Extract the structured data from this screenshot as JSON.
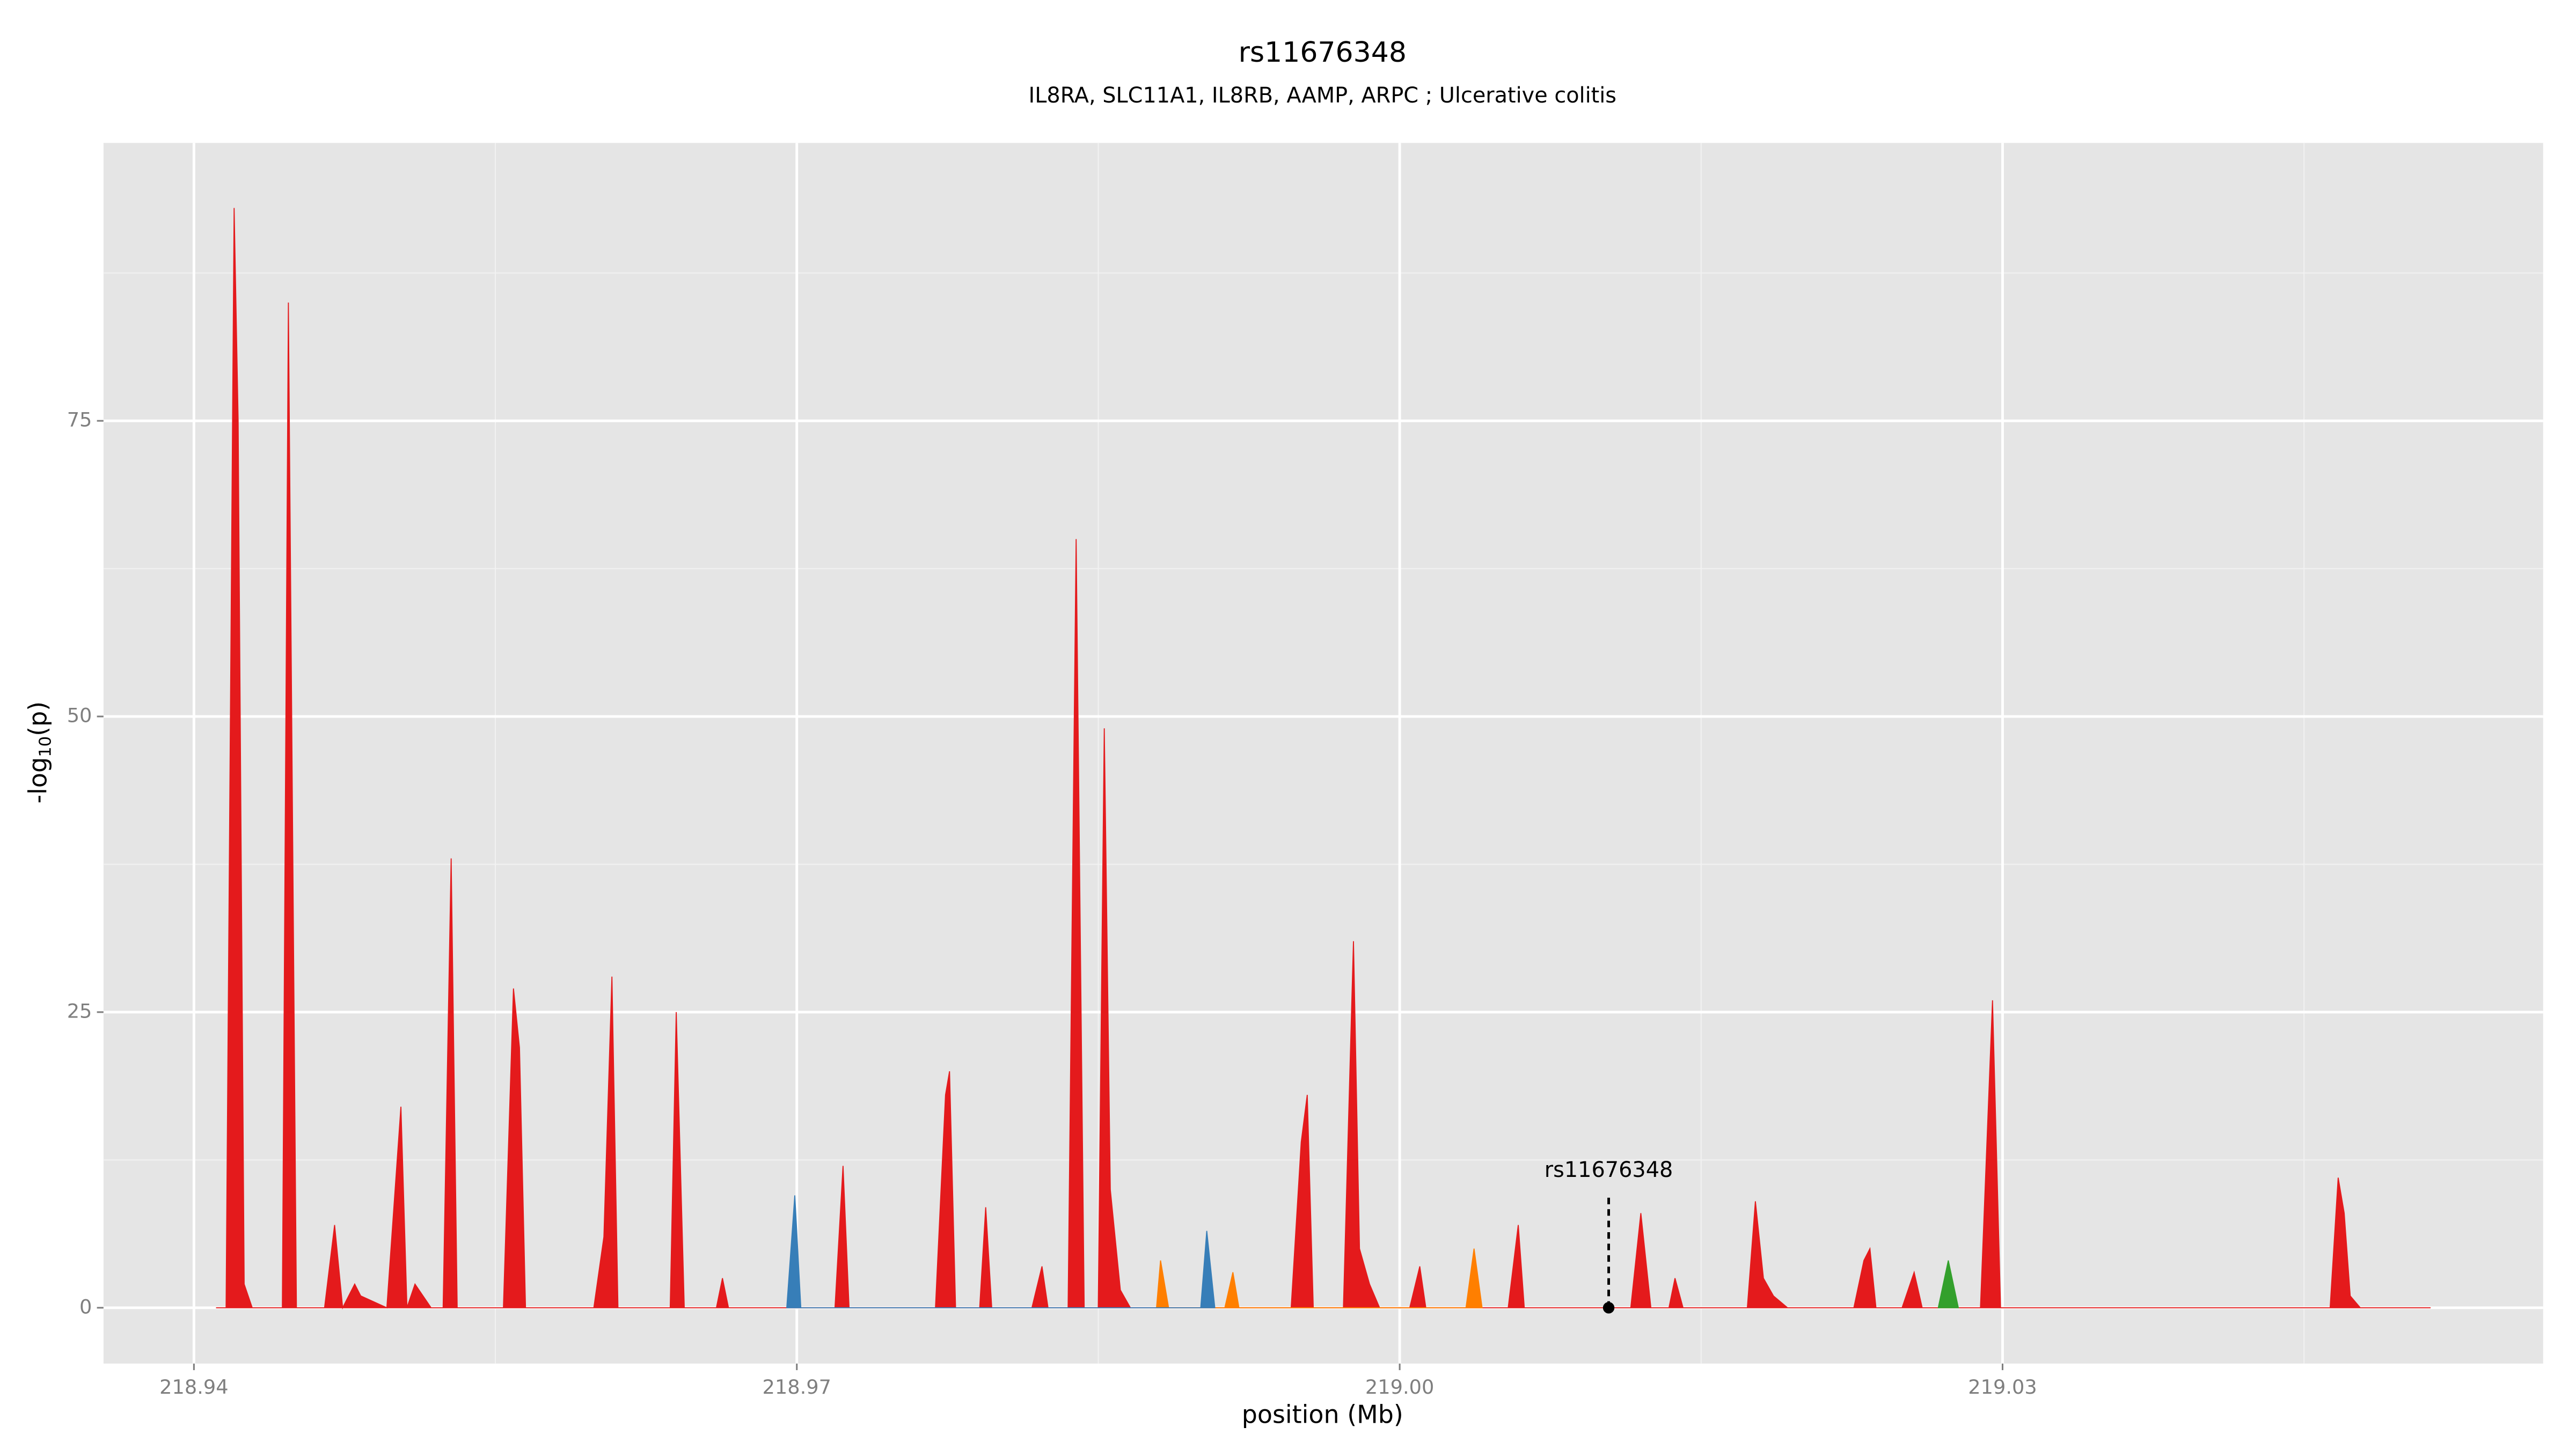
{
  "chart_data": {
    "type": "area",
    "title": "rs11676348",
    "subtitle": "IL8RA, SLC11A1, IL8RB, AAMP, ARPC ; Ulcerative colitis",
    "x_label": "position (Mb)",
    "y_label": [
      "-log",
      "10",
      "(p)"
    ],
    "xlim": [
      218.9355,
      219.0569
    ],
    "ylim": [
      -4.72,
      98.5
    ],
    "xticks": [
      218.94,
      218.97,
      {
        "value": 219,
        "label": "219.00"
      },
      219.03
    ],
    "yticks": [
      0,
      25,
      50,
      75
    ],
    "grid": true,
    "series": [
      {
        "color": "#e41a1c",
        "x": [
          218.9411,
          218.9416,
          218.942,
          218.9422,
          218.9425,
          218.9429,
          218.9444,
          218.9447,
          218.9451,
          218.9465,
          218.947,
          218.9474,
          218.948,
          218.9483,
          218.9496,
          218.9503,
          218.9506,
          218.951,
          218.9518,
          218.9524,
          218.9528,
          218.9531,
          218.9554,
          218.9559,
          218.9562,
          218.9565,
          218.9599,
          218.9604,
          218.9608,
          218.9611,
          218.9637,
          218.964,
          218.9644,
          218.966,
          218.9663,
          218.9666,
          218.9719,
          218.9723,
          218.9726,
          218.9769,
          218.9774,
          218.9776,
          218.9779,
          218.9791,
          218.9794,
          218.9797,
          218.9817,
          218.9822,
          218.9825,
          218.9835,
          218.9839,
          218.9843,
          218.985,
          218.9853,
          218.9856,
          218.9861,
          218.9866,
          218.9946,
          218.9951,
          218.9954,
          218.9957,
          218.9972,
          218.9977,
          218.998,
          218.9985,
          218.999,
          219.0005,
          219.001,
          219.0013,
          219.0054,
          219.0059,
          219.0062,
          219.0115,
          219.012,
          219.0125,
          219.0134,
          219.0137,
          219.0141,
          219.0173,
          219.0177,
          219.0181,
          219.0186,
          219.0193,
          219.0226,
          219.0231,
          219.0234,
          219.0237,
          219.025,
          219.0256,
          219.026,
          219.0289,
          219.0295,
          219.0299,
          219.0463,
          219.0467,
          219.047,
          219.0473,
          219.0478,
          219.0513
        ],
        "values": [
          0,
          0,
          93,
          75,
          2,
          0,
          0,
          85,
          0,
          0,
          7,
          0,
          2,
          1,
          0,
          17,
          0,
          2,
          0,
          0,
          38,
          0,
          0,
          27,
          22,
          0,
          0,
          6,
          28,
          0,
          0,
          25,
          0,
          0,
          2.5,
          0,
          0,
          12,
          0,
          0,
          18,
          20,
          0,
          0,
          8.5,
          0,
          0,
          3.5,
          0,
          0,
          65,
          0,
          0,
          49,
          10,
          1.5,
          0,
          0,
          14,
          18,
          0,
          0,
          31,
          5,
          2,
          0,
          0,
          3.5,
          0,
          0,
          7,
          0,
          0,
          8,
          0,
          0,
          2.5,
          0,
          0,
          9,
          2.5,
          1,
          0,
          0,
          4,
          5,
          0,
          0,
          3,
          0,
          0,
          26,
          0,
          0,
          11,
          8,
          1,
          0,
          0
        ]
      },
      {
        "color": "#ff7f00",
        "x": [
          218.9879,
          218.9881,
          218.9885,
          218.9913,
          218.9917,
          218.992,
          219.0033,
          219.0037,
          219.0041
        ],
        "values": [
          0,
          4,
          0,
          0,
          3,
          0,
          0,
          5,
          0
        ]
      },
      {
        "color": "#377eb8",
        "x": [
          218.9695,
          218.9699,
          218.9702,
          218.9901,
          218.9904,
          218.9908
        ],
        "values": [
          0,
          9.5,
          0,
          0,
          6.5,
          0
        ]
      },
      {
        "color": "#33a02c",
        "x": [
          219.0268,
          219.0273,
          219.0278
        ],
        "values": [
          0,
          4,
          0
        ]
      }
    ],
    "annotation": {
      "label": "rs11676348",
      "x": 219.0104,
      "value": 0
    }
  }
}
